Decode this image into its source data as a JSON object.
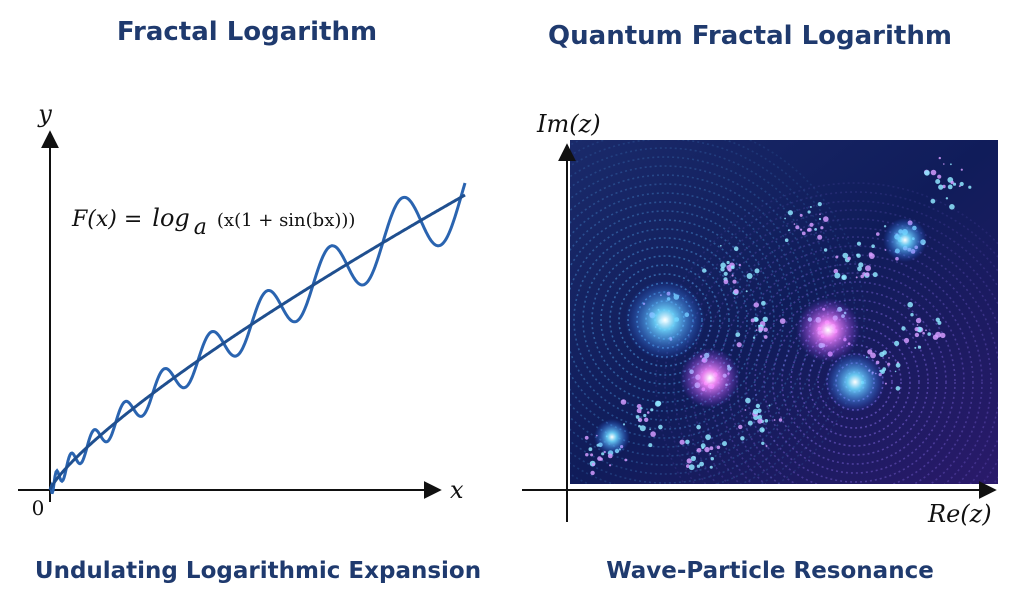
{
  "left_panel": {
    "title": "Fractal Logarithm",
    "y_axis": "y",
    "x_axis": "x",
    "origin": "0",
    "formula": {
      "lhs": "F(x) =",
      "func": "log",
      "base": "a",
      "arg": "(x(1 + sin(bx)))"
    },
    "caption": "Undulating Logarithmic Expansion"
  },
  "right_panel": {
    "title": "Quantum Fractal Logarithm",
    "y_axis": "Im(z)",
    "x_axis": "Re(z)",
    "caption": "Wave-Particle Resonance"
  }
}
